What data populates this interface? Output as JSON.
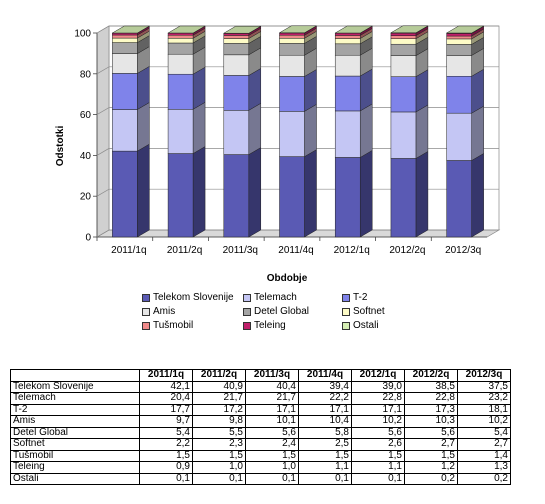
{
  "chart_data": {
    "type": "bar",
    "stacked": true,
    "three_d": true,
    "categories": [
      "2011/1q",
      "2011/2q",
      "2011/3q",
      "2011/4q",
      "2012/1q",
      "2012/2q",
      "2012/3q"
    ],
    "series": [
      {
        "name": "Telekom Slovenije",
        "color": "#5a5ab4",
        "values": [
          42.1,
          40.9,
          40.4,
          39.4,
          39.0,
          38.5,
          37.5
        ]
      },
      {
        "name": "Telemach",
        "color": "#c4c6f4",
        "values": [
          20.4,
          21.7,
          21.7,
          22.2,
          22.8,
          22.8,
          23.2
        ]
      },
      {
        "name": "T-2",
        "color": "#7f83ea",
        "values": [
          17.7,
          17.2,
          17.1,
          17.1,
          17.1,
          17.3,
          18.1
        ]
      },
      {
        "name": "Amis",
        "color": "#e6e6e6",
        "values": [
          9.7,
          9.8,
          10.1,
          10.4,
          10.2,
          10.3,
          10.2
        ]
      },
      {
        "name": "Detel Global",
        "color": "#a4a4a4",
        "values": [
          5.4,
          5.5,
          5.6,
          5.8,
          5.6,
          5.6,
          5.4
        ]
      },
      {
        "name": "Softnet",
        "color": "#fdfbc6",
        "values": [
          2.2,
          2.3,
          2.4,
          2.5,
          2.6,
          2.7,
          2.7
        ]
      },
      {
        "name": "Tušmobil",
        "color": "#f08a8a",
        "values": [
          1.5,
          1.5,
          1.5,
          1.5,
          1.5,
          1.5,
          1.4
        ]
      },
      {
        "name": "Teleing",
        "color": "#c01f6a",
        "values": [
          0.9,
          1.0,
          1.0,
          1.1,
          1.1,
          1.2,
          1.3
        ]
      },
      {
        "name": "Ostali",
        "color": "#d6efb4",
        "values": [
          0.1,
          0.1,
          0.1,
          0.1,
          0.1,
          0.2,
          0.2
        ]
      }
    ],
    "value_labels": [
      [
        "42,1",
        "40,9",
        "40,4",
        "39,4",
        "39,0",
        "38,5",
        "37,5"
      ],
      [
        "20,4",
        "21,7",
        "21,7",
        "22,2",
        "22,8",
        "22,8",
        "23,2"
      ],
      [
        "17,7",
        "17,2",
        "17,1",
        "17,1",
        "17,1",
        "17,3",
        "18,1"
      ],
      [
        "9,7",
        "9,8",
        "10,1",
        "10,4",
        "10,2",
        "10,3",
        "10,2"
      ],
      [
        "5,4",
        "5,5",
        "5,6",
        "5,8",
        "5,6",
        "5,6",
        "5,4"
      ],
      [
        "2,2",
        "2,3",
        "2,4",
        "2,5",
        "2,6",
        "2,7",
        "2,7"
      ],
      [
        "1,5",
        "1,5",
        "1,5",
        "1,5",
        "1,5",
        "1,5",
        "1,4"
      ],
      [
        "0,9",
        "1,0",
        "1,0",
        "1,1",
        "1,1",
        "1,2",
        "1,3"
      ],
      [
        "0,1",
        "0,1",
        "0,1",
        "0,1",
        "0,1",
        "0,2",
        "0,2"
      ]
    ],
    "xlabel": "Obdobje",
    "ylabel": "Odstotki",
    "ylim": [
      0,
      100
    ],
    "yticks": [
      0,
      20,
      40,
      60,
      80,
      100
    ],
    "grid": true,
    "legend_position": "bottom",
    "table_below": true
  }
}
